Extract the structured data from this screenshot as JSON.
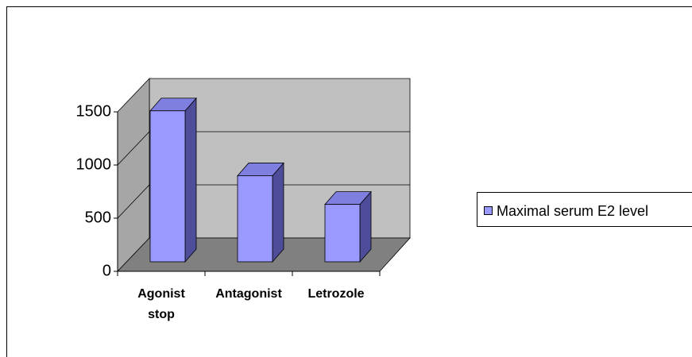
{
  "chart_data": {
    "type": "bar3d",
    "categories": [
      "Agonist stop",
      "Antagonist",
      "Letrozole"
    ],
    "series": [
      {
        "name": "Maximal serum E2 level",
        "color": "#9999ff",
        "values": [
          1420,
          810,
          540
        ]
      }
    ],
    "ylim": [
      0,
      1500
    ],
    "yticks": [
      0,
      500,
      1000,
      1500
    ],
    "grid": true,
    "legend": "right"
  }
}
